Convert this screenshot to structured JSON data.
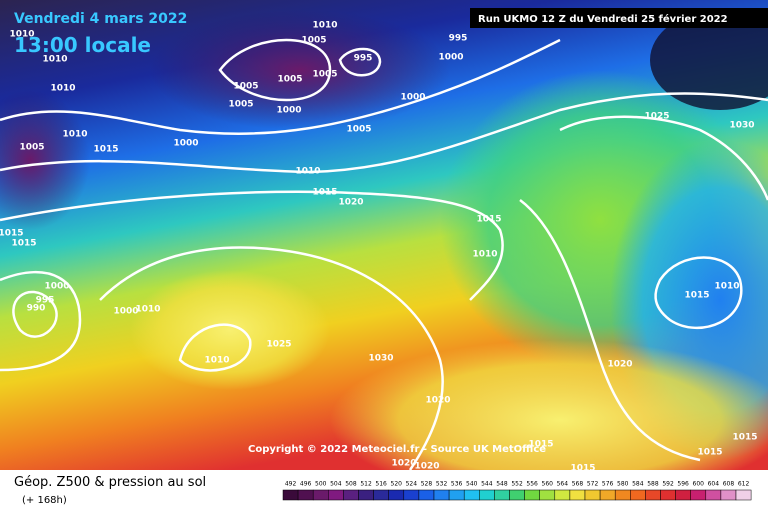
{
  "header": {
    "date": "Vendredi 4 mars 2022",
    "time": "13:00 locale",
    "run": "Run UKMO 12 Z du Vendredi 25 février 2022"
  },
  "copyright": "Copyright © 2022 Meteociel.fr - Source UK MetOffice",
  "legend": {
    "title": "Géop. Z500 & pression au sol",
    "lead": "(+ 168h)",
    "scale": [
      492,
      496,
      500,
      504,
      508,
      512,
      516,
      520,
      524,
      528,
      532,
      536,
      540,
      544,
      548,
      552,
      556,
      560,
      564,
      568,
      572,
      576,
      580,
      584,
      588,
      592,
      596,
      600,
      604,
      608,
      612
    ]
  },
  "isobar_labels": [
    "1010",
    "1010",
    "1010",
    "1005",
    "1010",
    "1015",
    "1000",
    "1010",
    "1005",
    "995",
    "995",
    "1000",
    "1005",
    "1005",
    "1005",
    "1005",
    "1000",
    "1000",
    "1005",
    "1010",
    "1015",
    "1020",
    "1025",
    "1030",
    "1015",
    "1015",
    "1015",
    "1010",
    "1000",
    "995",
    "990",
    "1000",
    "1010",
    "1025",
    "1010",
    "1030",
    "1020",
    "1015",
    "1010",
    "1020",
    "1015",
    "1015",
    "1015",
    "1020",
    "1020",
    "1015"
  ]
}
